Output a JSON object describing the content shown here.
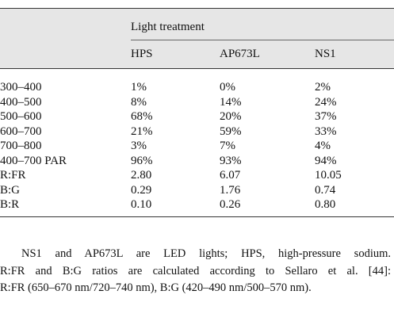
{
  "table": {
    "group_header": "Light treatment",
    "columns": [
      "HPS",
      "AP673L",
      "NS1"
    ],
    "rows": [
      [
        "300–400",
        "1%",
        "0%",
        "2%"
      ],
      [
        "400–500",
        "8%",
        "14%",
        "24%"
      ],
      [
        "500–600",
        "68%",
        "20%",
        "37%"
      ],
      [
        "600–700",
        "21%",
        "59%",
        "33%"
      ],
      [
        "700–800",
        "3%",
        "7%",
        "4%"
      ],
      [
        "400–700 PAR",
        "96%",
        "93%",
        "94%"
      ],
      [
        "R:FR",
        "2.80",
        "6.07",
        "10.05"
      ],
      [
        "B:G",
        "0.29",
        "1.76",
        "0.74"
      ],
      [
        "B:R",
        "0.10",
        "0.26",
        "0.80"
      ]
    ]
  },
  "footnote": [
    "NS1 and AP673L are LED lights; HPS, high-pressure sodium.",
    "R:FR and B:G ratios are calculated according to Sellaro et al. [44]:",
    "R:FR (650–670 nm/720–740 nm), B:G (420–490 nm/500–570 nm)."
  ]
}
